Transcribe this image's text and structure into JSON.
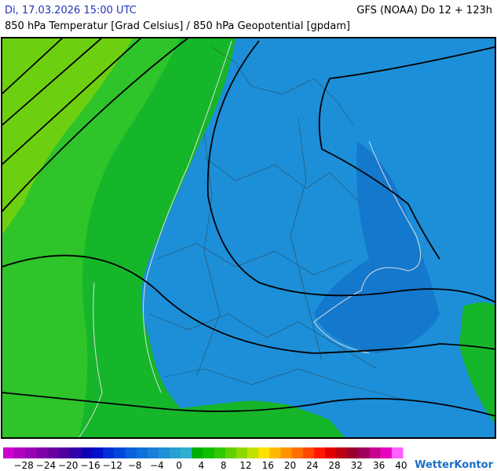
{
  "header": {
    "datetime": "Di, 17.03.2026 15:00 UTC",
    "model": "GFS (NOAA) Do 12 + 123h",
    "title": "850 hPa Temperatur [Grad Celsius] / 850 hPa Geopotential [gpdam]"
  },
  "legend": {
    "labels": [
      "−28",
      "−24",
      "−20",
      "−16",
      "−12",
      "−8",
      "−4",
      "0",
      "4",
      "8",
      "12",
      "16",
      "20",
      "24",
      "28",
      "32",
      "36",
      "40"
    ],
    "colors": [
      "#cc00cc",
      "#b000c0",
      "#9a00b5",
      "#8000a8",
      "#6a00a0",
      "#5000a0",
      "#3000a8",
      "#1000b0",
      "#0010c8",
      "#0030d8",
      "#0048dc",
      "#0860dc",
      "#1070dc",
      "#1880d8",
      "#2090d8",
      "#28a0d4",
      "#30b0d0",
      "#00b000",
      "#10c000",
      "#30c800",
      "#60d000",
      "#90d800",
      "#c0e000",
      "#ffe000",
      "#ffb800",
      "#ff9400",
      "#ff7000",
      "#ff4800",
      "#ff1800",
      "#e00000",
      "#b80010",
      "#980030",
      "#a00060",
      "#c80090",
      "#e800c0",
      "#ff60ff"
    ]
  },
  "logo": {
    "text": "WetterKontor"
  }
}
